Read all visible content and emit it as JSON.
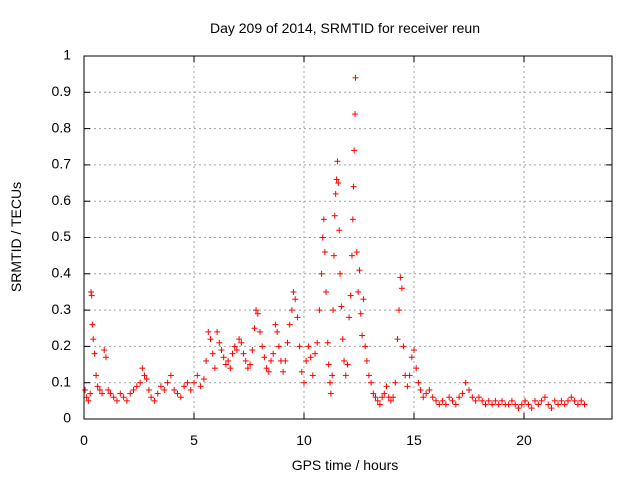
{
  "chart_data": {
    "type": "scatter",
    "title": "Day 209 of 2014, SRMTID for receiver reun",
    "xlabel": "GPS time / hours",
    "ylabel": "SRMTID / TECUs",
    "xlim": [
      0,
      24
    ],
    "ylim": [
      0,
      1
    ],
    "x_ticks": [
      0,
      5,
      10,
      15,
      20
    ],
    "y_ticks": [
      0,
      0.1,
      0.2,
      0.3,
      0.4,
      0.5,
      0.6,
      0.7,
      0.8,
      0.9,
      1
    ],
    "x_tick_labels": [
      "0",
      "5",
      "10",
      "15",
      "20"
    ],
    "y_tick_labels": [
      "0",
      "0.1",
      "0.2",
      "0.3",
      "0.4",
      "0.5",
      "0.6",
      "0.7",
      "0.8",
      "0.9",
      "1"
    ],
    "grid": true,
    "marker": "+",
    "series": [
      {
        "name": "SRMTID",
        "color": "#ff0000",
        "points": [
          [
            0.05,
            0.08
          ],
          [
            0.12,
            0.06
          ],
          [
            0.2,
            0.05
          ],
          [
            0.28,
            0.07
          ],
          [
            0.32,
            0.35
          ],
          [
            0.35,
            0.34
          ],
          [
            0.38,
            0.26
          ],
          [
            0.42,
            0.22
          ],
          [
            0.48,
            0.18
          ],
          [
            0.55,
            0.12
          ],
          [
            0.62,
            0.09
          ],
          [
            0.72,
            0.08
          ],
          [
            0.82,
            0.07
          ],
          [
            0.92,
            0.19
          ],
          [
            1.0,
            0.17
          ],
          [
            1.1,
            0.08
          ],
          [
            1.2,
            0.07
          ],
          [
            1.35,
            0.06
          ],
          [
            1.5,
            0.05
          ],
          [
            1.65,
            0.07
          ],
          [
            1.8,
            0.06
          ],
          [
            1.95,
            0.05
          ],
          [
            2.1,
            0.07
          ],
          [
            2.25,
            0.08
          ],
          [
            2.4,
            0.09
          ],
          [
            2.55,
            0.1
          ],
          [
            2.65,
            0.14
          ],
          [
            2.75,
            0.12
          ],
          [
            2.85,
            0.11
          ],
          [
            2.95,
            0.08
          ],
          [
            3.05,
            0.06
          ],
          [
            3.2,
            0.05
          ],
          [
            3.35,
            0.07
          ],
          [
            3.5,
            0.09
          ],
          [
            3.65,
            0.08
          ],
          [
            3.8,
            0.1
          ],
          [
            3.95,
            0.12
          ],
          [
            4.1,
            0.08
          ],
          [
            4.25,
            0.07
          ],
          [
            4.4,
            0.06
          ],
          [
            4.55,
            0.09
          ],
          [
            4.7,
            0.1
          ],
          [
            4.85,
            0.08
          ],
          [
            5.0,
            0.1
          ],
          [
            5.15,
            0.12
          ],
          [
            5.3,
            0.09
          ],
          [
            5.45,
            0.11
          ],
          [
            5.55,
            0.16
          ],
          [
            5.65,
            0.24
          ],
          [
            5.75,
            0.22
          ],
          [
            5.85,
            0.18
          ],
          [
            5.95,
            0.14
          ],
          [
            6.05,
            0.24
          ],
          [
            6.15,
            0.21
          ],
          [
            6.25,
            0.19
          ],
          [
            6.35,
            0.17
          ],
          [
            6.45,
            0.15
          ],
          [
            6.55,
            0.16
          ],
          [
            6.65,
            0.14
          ],
          [
            6.75,
            0.18
          ],
          [
            6.85,
            0.2
          ],
          [
            6.95,
            0.19
          ],
          [
            7.05,
            0.22
          ],
          [
            7.15,
            0.21
          ],
          [
            7.25,
            0.18
          ],
          [
            7.35,
            0.16
          ],
          [
            7.45,
            0.14
          ],
          [
            7.55,
            0.15
          ],
          [
            7.65,
            0.19
          ],
          [
            7.75,
            0.25
          ],
          [
            7.82,
            0.3
          ],
          [
            7.9,
            0.29
          ],
          [
            8.0,
            0.24
          ],
          [
            8.1,
            0.2
          ],
          [
            8.2,
            0.17
          ],
          [
            8.3,
            0.14
          ],
          [
            8.4,
            0.13
          ],
          [
            8.5,
            0.16
          ],
          [
            8.6,
            0.18
          ],
          [
            8.7,
            0.26
          ],
          [
            8.78,
            0.24
          ],
          [
            8.86,
            0.2
          ],
          [
            8.95,
            0.16
          ],
          [
            9.05,
            0.13
          ],
          [
            9.15,
            0.16
          ],
          [
            9.25,
            0.21
          ],
          [
            9.35,
            0.26
          ],
          [
            9.45,
            0.3
          ],
          [
            9.52,
            0.35
          ],
          [
            9.6,
            0.33
          ],
          [
            9.7,
            0.28
          ],
          [
            9.8,
            0.2
          ],
          [
            9.9,
            0.13
          ],
          [
            10.0,
            0.1
          ],
          [
            10.1,
            0.16
          ],
          [
            10.2,
            0.2
          ],
          [
            10.3,
            0.17
          ],
          [
            10.4,
            0.12
          ],
          [
            10.5,
            0.18
          ],
          [
            10.6,
            0.21
          ],
          [
            10.7,
            0.3
          ],
          [
            10.8,
            0.4
          ],
          [
            10.85,
            0.5
          ],
          [
            10.9,
            0.55
          ],
          [
            10.95,
            0.46
          ],
          [
            11.0,
            0.35
          ],
          [
            11.08,
            0.21
          ],
          [
            11.12,
            0.15
          ],
          [
            11.18,
            0.1
          ],
          [
            11.22,
            0.07
          ],
          [
            11.28,
            0.12
          ],
          [
            11.32,
            0.3
          ],
          [
            11.36,
            0.45
          ],
          [
            11.4,
            0.56
          ],
          [
            11.44,
            0.62
          ],
          [
            11.48,
            0.66
          ],
          [
            11.52,
            0.71
          ],
          [
            11.56,
            0.65
          ],
          [
            11.6,
            0.52
          ],
          [
            11.64,
            0.4
          ],
          [
            11.7,
            0.31
          ],
          [
            11.76,
            0.22
          ],
          [
            11.82,
            0.16
          ],
          [
            11.9,
            0.12
          ],
          [
            11.98,
            0.15
          ],
          [
            12.05,
            0.28
          ],
          [
            12.12,
            0.34
          ],
          [
            12.18,
            0.45
          ],
          [
            12.22,
            0.55
          ],
          [
            12.25,
            0.64
          ],
          [
            12.28,
            0.74
          ],
          [
            12.32,
            0.84
          ],
          [
            12.34,
            0.94
          ],
          [
            12.4,
            0.46
          ],
          [
            12.46,
            0.35
          ],
          [
            12.52,
            0.41
          ],
          [
            12.58,
            0.29
          ],
          [
            12.64,
            0.23
          ],
          [
            12.7,
            0.33
          ],
          [
            12.78,
            0.2
          ],
          [
            12.86,
            0.16
          ],
          [
            12.95,
            0.12
          ],
          [
            13.05,
            0.1
          ],
          [
            13.15,
            0.07
          ],
          [
            13.25,
            0.06
          ],
          [
            13.35,
            0.05
          ],
          [
            13.45,
            0.04
          ],
          [
            13.55,
            0.06
          ],
          [
            13.65,
            0.07
          ],
          [
            13.75,
            0.09
          ],
          [
            13.85,
            0.06
          ],
          [
            13.95,
            0.05
          ],
          [
            14.05,
            0.06
          ],
          [
            14.15,
            0.1
          ],
          [
            14.25,
            0.22
          ],
          [
            14.32,
            0.3
          ],
          [
            14.38,
            0.39
          ],
          [
            14.45,
            0.36
          ],
          [
            14.52,
            0.2
          ],
          [
            14.6,
            0.12
          ],
          [
            14.7,
            0.09
          ],
          [
            14.8,
            0.12
          ],
          [
            14.9,
            0.17
          ],
          [
            15.0,
            0.19
          ],
          [
            15.1,
            0.14
          ],
          [
            15.2,
            0.1
          ],
          [
            15.3,
            0.08
          ],
          [
            15.42,
            0.06
          ],
          [
            15.55,
            0.07
          ],
          [
            15.7,
            0.08
          ],
          [
            15.85,
            0.06
          ],
          [
            16.0,
            0.05
          ],
          [
            16.15,
            0.04
          ],
          [
            16.3,
            0.05
          ],
          [
            16.45,
            0.04
          ],
          [
            16.6,
            0.06
          ],
          [
            16.75,
            0.05
          ],
          [
            16.9,
            0.04
          ],
          [
            17.05,
            0.06
          ],
          [
            17.2,
            0.07
          ],
          [
            17.35,
            0.1
          ],
          [
            17.5,
            0.08
          ],
          [
            17.65,
            0.06
          ],
          [
            17.8,
            0.05
          ],
          [
            17.95,
            0.06
          ],
          [
            18.1,
            0.05
          ],
          [
            18.25,
            0.04
          ],
          [
            18.4,
            0.05
          ],
          [
            18.55,
            0.04
          ],
          [
            18.7,
            0.05
          ],
          [
            18.85,
            0.04
          ],
          [
            19.0,
            0.05
          ],
          [
            19.15,
            0.04
          ],
          [
            19.3,
            0.04
          ],
          [
            19.45,
            0.05
          ],
          [
            19.6,
            0.04
          ],
          [
            19.75,
            0.03
          ],
          [
            19.9,
            0.04
          ],
          [
            20.05,
            0.05
          ],
          [
            20.2,
            0.04
          ],
          [
            20.35,
            0.03
          ],
          [
            20.5,
            0.05
          ],
          [
            20.65,
            0.04
          ],
          [
            20.8,
            0.05
          ],
          [
            20.95,
            0.06
          ],
          [
            21.1,
            0.04
          ],
          [
            21.25,
            0.03
          ],
          [
            21.4,
            0.05
          ],
          [
            21.55,
            0.04
          ],
          [
            21.7,
            0.05
          ],
          [
            21.85,
            0.04
          ],
          [
            22.0,
            0.05
          ],
          [
            22.15,
            0.06
          ],
          [
            22.3,
            0.05
          ],
          [
            22.45,
            0.04
          ],
          [
            22.6,
            0.05
          ],
          [
            22.75,
            0.04
          ]
        ]
      }
    ]
  }
}
